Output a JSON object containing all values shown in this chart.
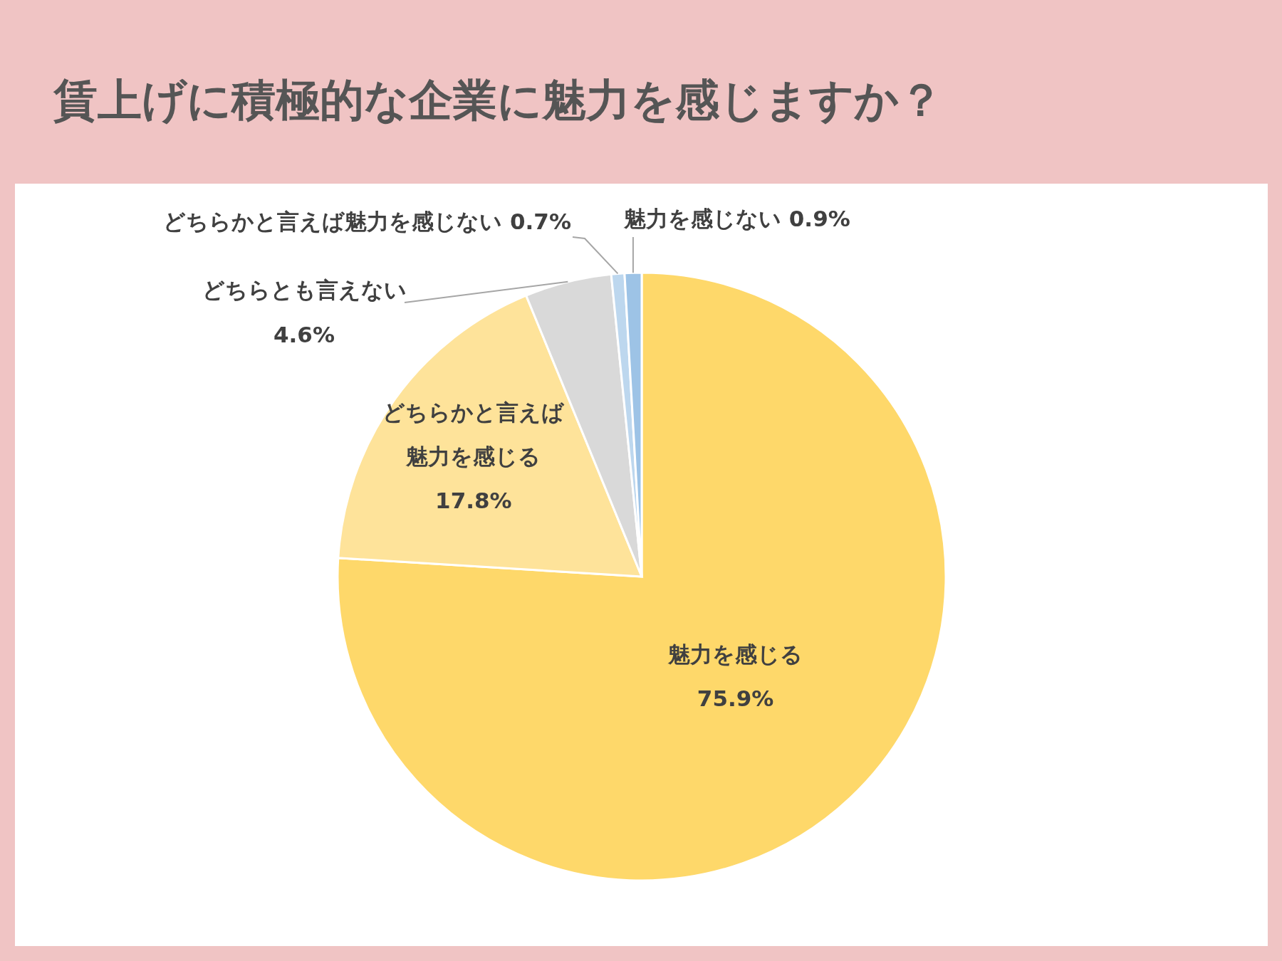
{
  "chart_data": {
    "type": "pie",
    "title": "賃上げに積極的な企業に魅力を感じますか？",
    "categories": [
      "魅力を感じる",
      "どちらかと言えば魅力を感じる",
      "どちらとも言えない",
      "どちらかと言えば魅力を感じない",
      "魅力を感じない"
    ],
    "values": [
      75.9,
      17.8,
      4.6,
      0.7,
      0.9
    ],
    "value_labels": [
      "75.9%",
      "17.8%",
      "4.6%",
      "0.7%",
      "0.9%"
    ],
    "colors": [
      "#fed86a",
      "#fee39a",
      "#d9d9d9",
      "#bdd7ee",
      "#9dc3e6"
    ]
  }
}
